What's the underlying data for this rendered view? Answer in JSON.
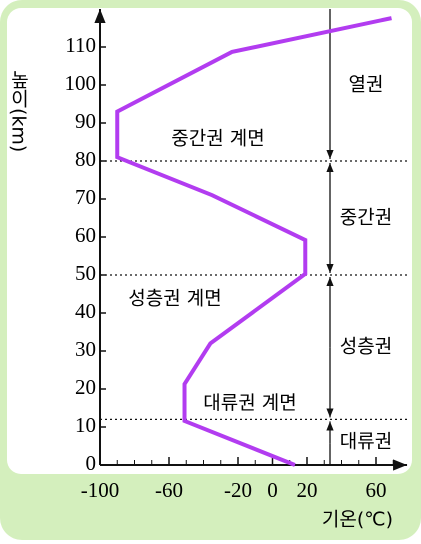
{
  "chart_data": {
    "type": "line",
    "x_label": "기온(℃)",
    "y_label": "높이(km)",
    "xlim": [
      -100,
      78
    ],
    "ylim": [
      0,
      120
    ],
    "xticks": [
      -100,
      -60,
      -20,
      0,
      20,
      60
    ],
    "yticks": [
      0,
      10,
      20,
      30,
      40,
      50,
      60,
      70,
      80,
      90,
      100,
      110
    ],
    "series": [
      {
        "color": "#b23cf0",
        "x": [
          13,
          -51,
          -51,
          -36,
          19,
          19,
          -35,
          -90,
          -90,
          -23.5,
          69
        ],
        "values": [
          0,
          11.6,
          21.3,
          32,
          50.3,
          59.2,
          71,
          81,
          93,
          108.7,
          117.6
        ]
      }
    ],
    "boundaries": [
      {
        "label": "대류권 계면",
        "value": 12
      },
      {
        "label": "성층권 계면",
        "value": 50
      },
      {
        "label": "중간권 계면",
        "value": 80
      }
    ],
    "layers": [
      "대류권",
      "성층권",
      "중간권",
      "열권"
    ]
  }
}
